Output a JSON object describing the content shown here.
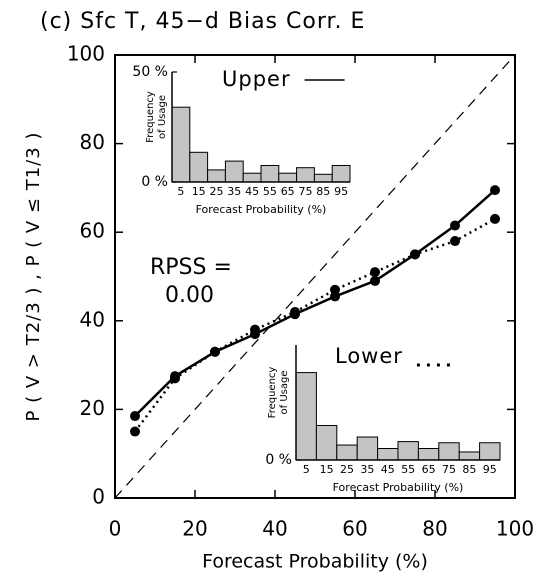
{
  "chart_data": [
    {
      "type": "line",
      "title": "(c) Sfc T, 45−d Bias Corr. E",
      "xlabel": "Forecast Probability (%)",
      "ylabel": "P ( V > T2/3 ) , P ( V ≤ T1/3 )",
      "x": [
        5,
        15,
        25,
        35,
        45,
        55,
        65,
        75,
        85,
        95
      ],
      "series": [
        {
          "name": "Upper",
          "color": "#000000",
          "style": "solid",
          "values": [
            18.5,
            27.5,
            33,
            37,
            41.5,
            45.5,
            49,
            55,
            61.5,
            69.5
          ]
        },
        {
          "name": "Lower",
          "color": "#000000",
          "style": "dotted",
          "values": [
            15,
            27,
            33,
            38,
            42,
            47,
            51,
            55,
            58,
            63
          ]
        }
      ],
      "xlim": [
        0,
        100
      ],
      "ylim": [
        0,
        100
      ],
      "xticks": [
        0,
        20,
        40,
        60,
        80,
        100
      ],
      "yticks": [
        0,
        20,
        40,
        60,
        80,
        100
      ],
      "annotation": [
        "RPSS =",
        "0.00"
      ]
    },
    {
      "type": "bar",
      "ylabel": [
        "Frequency",
        "of Usage"
      ],
      "xlabel": "Forecast Probability (%)",
      "categories": [
        "5",
        "15",
        "25",
        "35",
        "45",
        "55",
        "65",
        "75",
        "85",
        "95"
      ],
      "values": [
        34,
        13.5,
        5.5,
        9.5,
        4,
        7.5,
        4,
        6.5,
        3.5,
        7.5
      ],
      "color": "#c4c4c4",
      "ylim": [
        0,
        50
      ],
      "yticks": [
        {
          "value": 0,
          "label": "0 %"
        },
        {
          "value": 50,
          "label": "50 %"
        }
      ]
    },
    {
      "type": "bar",
      "ylabel": [
        "Frequency",
        "of Usage"
      ],
      "xlabel": "Forecast Probability (%)",
      "categories": [
        "5",
        "15",
        "25",
        "35",
        "45",
        "55",
        "65",
        "75",
        "85",
        "95"
      ],
      "values": [
        38,
        15,
        6.5,
        10,
        5,
        8,
        5,
        7.5,
        3.5,
        7.5
      ],
      "color": "#c4c4c4",
      "ylim": [
        0,
        50
      ],
      "yticks": [
        {
          "value": 0,
          "label": "0 %"
        }
      ]
    }
  ]
}
